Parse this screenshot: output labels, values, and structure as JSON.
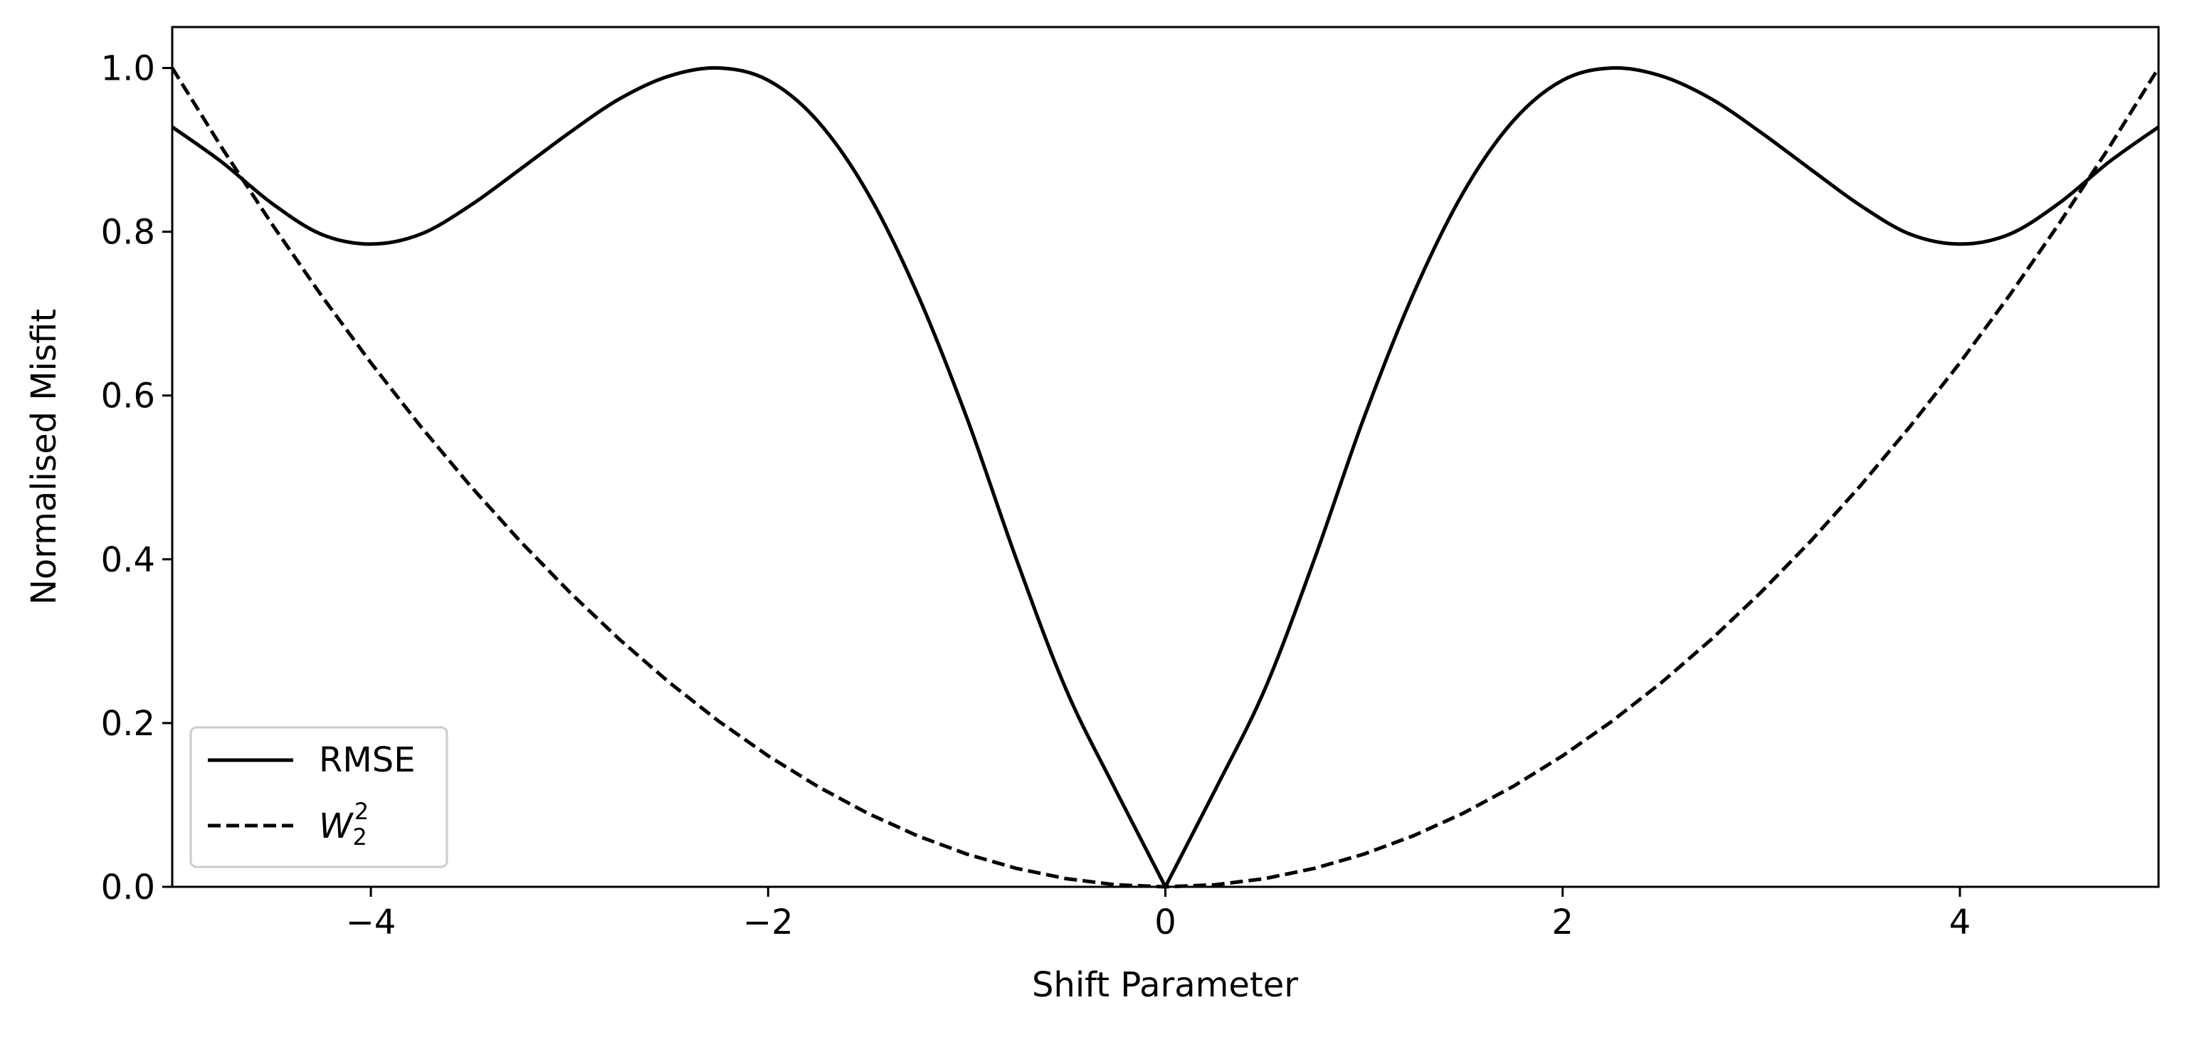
{
  "chart_data": {
    "type": "line",
    "title": "",
    "xlabel": "Shift Parameter",
    "ylabel": "Normalised Misfit",
    "xlim": [
      -5,
      5
    ],
    "ylim": [
      0,
      1.05
    ],
    "xticks": [
      -4,
      -2,
      0,
      2,
      4
    ],
    "xtick_labels": [
      "−4",
      "−2",
      "0",
      "2",
      "4"
    ],
    "yticks": [
      0.0,
      0.2,
      0.4,
      0.6,
      0.8,
      1.0
    ],
    "ytick_labels": [
      "0.0",
      "0.2",
      "0.4",
      "0.6",
      "0.8",
      "1.0"
    ],
    "grid": false,
    "legend_position": "bottom-left",
    "x": [
      -5.0,
      -4.75,
      -4.5,
      -4.25,
      -4.0,
      -3.75,
      -3.5,
      -3.25,
      -3.0,
      -2.75,
      -2.5,
      -2.25,
      -2.0,
      -1.75,
      -1.5,
      -1.25,
      -1.0,
      -0.75,
      -0.5,
      -0.25,
      0.0,
      0.25,
      0.5,
      0.75,
      1.0,
      1.25,
      1.5,
      1.75,
      2.0,
      2.25,
      2.5,
      2.75,
      3.0,
      3.25,
      3.5,
      3.75,
      4.0,
      4.25,
      4.5,
      4.75,
      5.0
    ],
    "series": [
      {
        "name": "RMSE",
        "style": "solid",
        "color": "#000000",
        "values": [
          0.928,
          0.885,
          0.835,
          0.797,
          0.785,
          0.797,
          0.832,
          0.876,
          0.921,
          0.962,
          0.99,
          1.0,
          0.985,
          0.935,
          0.848,
          0.725,
          0.573,
          0.4,
          0.241,
          0.118,
          0.0,
          0.118,
          0.241,
          0.4,
          0.573,
          0.725,
          0.848,
          0.935,
          0.985,
          1.0,
          0.99,
          0.962,
          0.921,
          0.876,
          0.832,
          0.797,
          0.785,
          0.797,
          0.835,
          0.885,
          0.928
        ]
      },
      {
        "name": "W",
        "name_sub": "2",
        "name_sup": "2",
        "style": "dashed",
        "color": "#000000",
        "values": [
          1.0,
          0.9025,
          0.81,
          0.7225,
          0.64,
          0.5625,
          0.49,
          0.4225,
          0.36,
          0.3025,
          0.25,
          0.2025,
          0.16,
          0.1225,
          0.09,
          0.0625,
          0.04,
          0.0225,
          0.01,
          0.0025,
          0.0,
          0.0025,
          0.01,
          0.0225,
          0.04,
          0.0625,
          0.09,
          0.1225,
          0.16,
          0.2025,
          0.25,
          0.3025,
          0.36,
          0.4225,
          0.49,
          0.5625,
          0.64,
          0.7225,
          0.81,
          0.9025,
          1.0
        ]
      }
    ]
  }
}
